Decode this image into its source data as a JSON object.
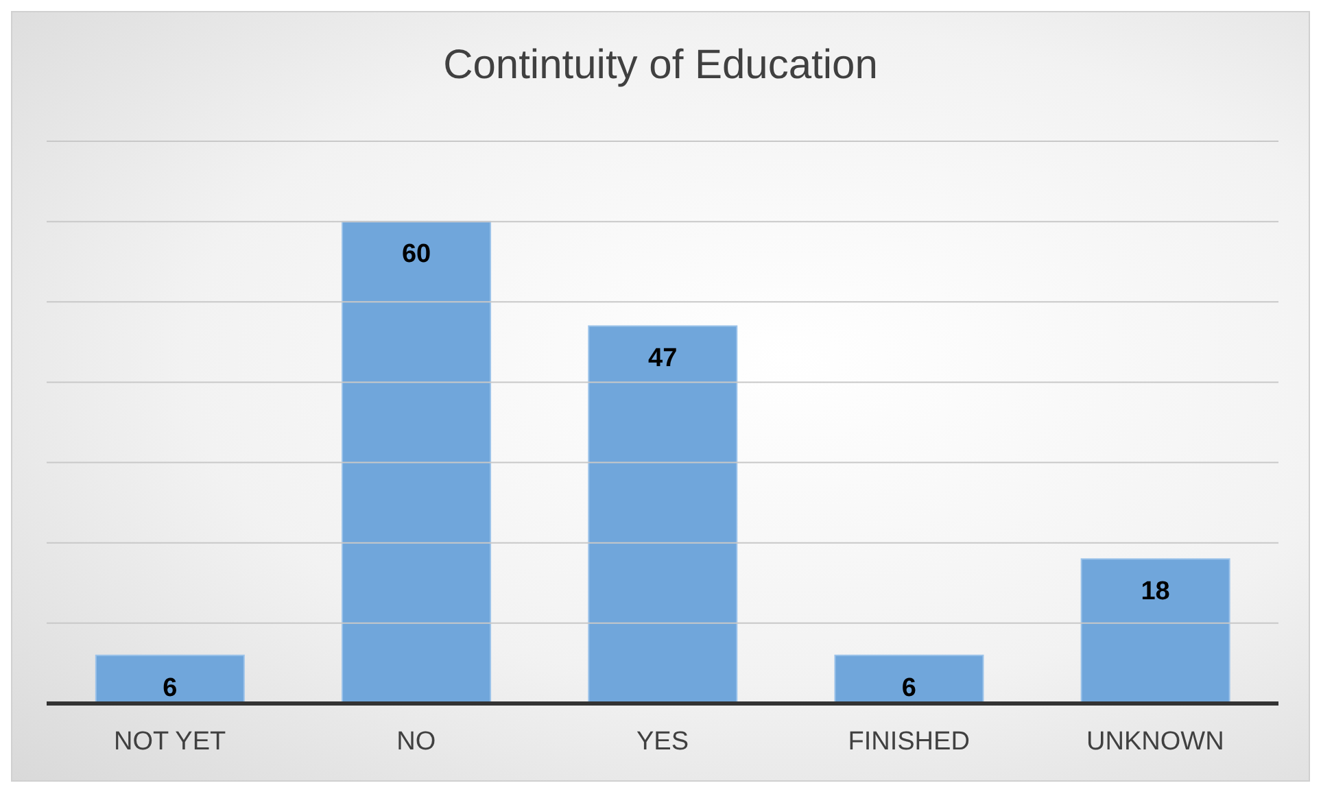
{
  "chart_data": {
    "type": "bar",
    "title": "Contintuity of Education",
    "categories": [
      "NOT YET",
      "NO",
      "YES",
      "FINISHED",
      "UNKNOWN"
    ],
    "values": [
      6,
      60,
      47,
      6,
      18
    ],
    "color": "#70a6db",
    "ylim": [
      0,
      70
    ],
    "yticks": [
      {
        "value": 0,
        "label": null
      },
      {
        "value": 10,
        "label": null
      },
      {
        "value": 20,
        "label": null
      },
      {
        "value": 30,
        "label": null
      },
      {
        "value": 40,
        "label": null
      },
      {
        "value": 50,
        "label": null
      },
      {
        "value": 60,
        "label": null
      },
      {
        "value": 70,
        "label": null
      }
    ],
    "tick_labels": "x",
    "grid": "y",
    "data_labels": true,
    "legend": false
  }
}
